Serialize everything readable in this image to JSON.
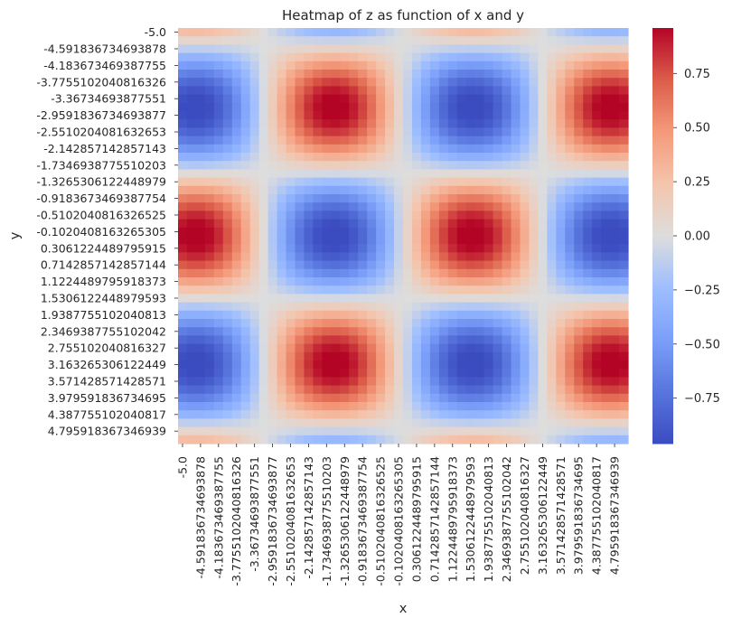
{
  "chart_data": {
    "type": "heatmap",
    "title": "Heatmap of z as function of x and y",
    "xlabel": "x",
    "ylabel": "y",
    "function": "z = sin(x) * cos(y)",
    "grid": {
      "n": 50,
      "min": -5.0,
      "max": 5.0
    },
    "colormap": "coolwarm",
    "colors": {
      "low": "#3b4cc0",
      "mid": "#dddddd",
      "high": "#b40426"
    },
    "x_tick_labels": [
      "-5.0",
      "-4.591836734693878",
      "-4.183673469387755",
      "-3.7755102040816326",
      "-3.36734693877551",
      "-2.9591836734693877",
      "-2.5510204081632653",
      "-2.142857142857143",
      "-1.7346938775510203",
      "-1.3265306122448979",
      "-0.9183673469387754",
      "-0.5102040816326525",
      "-0.1020408163265305",
      "0.3061224489795915",
      "0.7142857142857144",
      "1.1224489795918373",
      "1.5306122448979593",
      "1.9387755102040813",
      "2.3469387755102042",
      "2.755102040816327",
      "3.163265306122449",
      "3.571428571428571",
      "3.979591836734695",
      "4.387755102040817",
      "4.795918367346939"
    ],
    "y_tick_labels": [
      "-5.0",
      "-4.591836734693878",
      "-4.183673469387755",
      "-3.7755102040816326",
      "-3.36734693877551",
      "-2.9591836734693877",
      "-2.5510204081632653",
      "-2.142857142857143",
      "-1.7346938775510203",
      "-1.3265306122448979",
      "-0.9183673469387754",
      "-0.5102040816326525",
      "-0.1020408163265305",
      "0.3061224489795915",
      "0.7142857142857144",
      "1.1224489795918373",
      "1.5306122448979593",
      "1.9387755102040813",
      "2.3469387755102042",
      "2.755102040816327",
      "3.163265306122449",
      "3.571428571428571",
      "3.979591836734695",
      "4.387755102040817",
      "4.795918367346939"
    ],
    "colorbar": {
      "ticks": [
        0.75,
        0.5,
        0.25,
        0.0,
        -0.25,
        -0.5,
        -0.75
      ],
      "tick_labels": [
        "0.75",
        "0.50",
        "0.25",
        "0.00",
        "−0.25",
        "−0.50",
        "−0.75"
      ],
      "range": [
        -0.96,
        0.96
      ]
    }
  }
}
